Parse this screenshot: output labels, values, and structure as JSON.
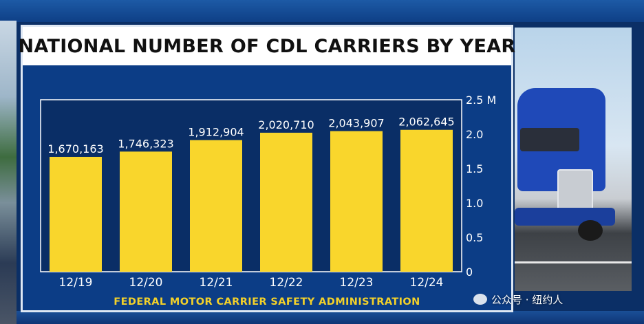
{
  "broadcast": {
    "title": "NATIONAL NUMBER OF CDL CARRIERS BY YEAR",
    "source": "FEDERAL MOTOR CARRIER SAFETY ADMINISTRATION",
    "watermark": "公众号 · 纽约人",
    "colors": {
      "panel": "#0c3d86",
      "plot": "#0a2e66",
      "bar": "#f9d62c",
      "accent": "#f3d12a"
    }
  },
  "chart_data": {
    "type": "bar",
    "title": "NATIONAL NUMBER OF CDL CARRIERS BY YEAR",
    "categories": [
      "12/19",
      "12/20",
      "12/21",
      "12/22",
      "12/23",
      "12/24"
    ],
    "values": [
      1670163,
      1746323,
      1912904,
      2020710,
      2043907,
      2062645
    ],
    "data_labels": [
      "1,670,163",
      "1,746,323",
      "1,912,904",
      "2,020,710",
      "2,043,907",
      "2,062,645"
    ],
    "y_ticks": [
      0,
      0.5,
      1.0,
      1.5,
      2.0,
      2.5
    ],
    "y_tick_labels": [
      "0",
      "0.5",
      "1.0",
      "1.5",
      "2.0",
      "2.5 M"
    ],
    "ylim": [
      0,
      2500000
    ],
    "y_axis_side": "right",
    "grid": false,
    "legend": "none",
    "xlabel": "",
    "ylabel": ""
  }
}
